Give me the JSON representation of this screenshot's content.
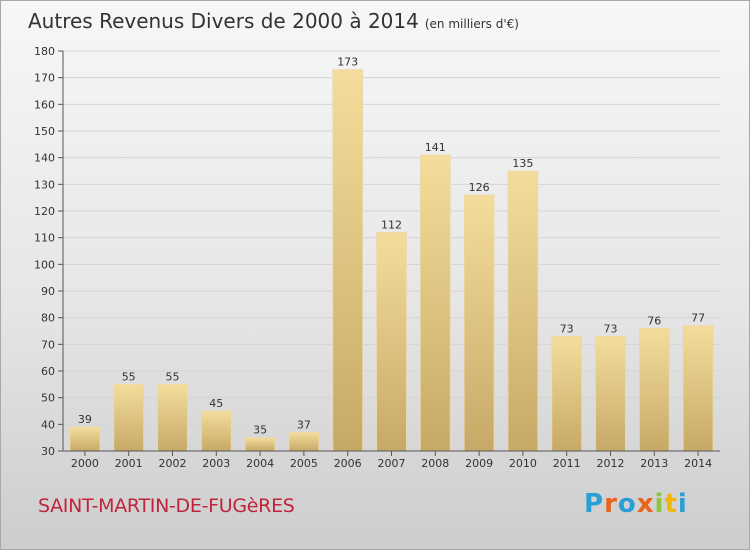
{
  "header": {
    "title": "Autres Revenus Divers de 2000 à 2014",
    "subtitle": "(en milliers d'€)"
  },
  "footer": {
    "commune": "SAINT-MARTIN-DE-FUGèRES",
    "brand": "Proxiti",
    "brand_colors": [
      "#2a9fd6",
      "#e8641b",
      "#2a9fd6",
      "#e8641b",
      "#8dc63f",
      "#f2b705",
      "#2a9fd6"
    ]
  },
  "colors": {
    "bar_light": "#f4dd9c",
    "bar_dark": "#c7a967",
    "axis": "#555555",
    "grid": "#d4d4d4",
    "commune": "#c0233c"
  },
  "chart_data": {
    "type": "bar",
    "categories": [
      "2000",
      "2001",
      "2002",
      "2003",
      "2004",
      "2005",
      "2006",
      "2007",
      "2008",
      "2009",
      "2010",
      "2011",
      "2012",
      "2013",
      "2014"
    ],
    "values": [
      39,
      55,
      55,
      45,
      35,
      37,
      173,
      112,
      141,
      126,
      135,
      73,
      73,
      76,
      77
    ],
    "yticks": [
      30,
      40,
      50,
      60,
      70,
      80,
      90,
      100,
      110,
      120,
      130,
      140,
      150,
      160,
      170,
      180
    ],
    "ylim": [
      30,
      180
    ],
    "grid": true,
    "legend": "none"
  }
}
